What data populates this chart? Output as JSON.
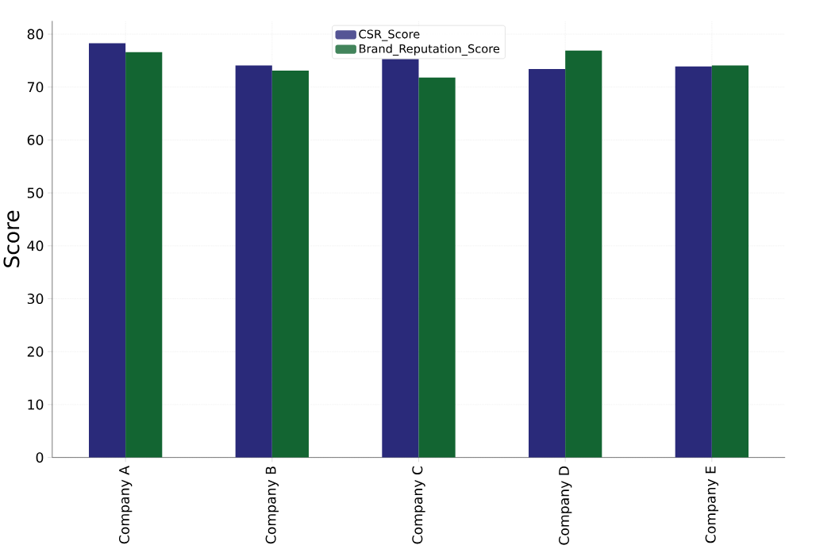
{
  "chart_data": {
    "type": "bar",
    "ylabel": "Score",
    "categories": [
      "Company A",
      "Company B",
      "Company C",
      "Company D",
      "Company E"
    ],
    "series": [
      {
        "name": "CSR_Score",
        "color": "#2a2a7a",
        "values": [
          78.3,
          74.1,
          75.3,
          73.4,
          73.9
        ]
      },
      {
        "name": "Brand_Reputation_Score",
        "color": "#136532",
        "values": [
          76.6,
          73.1,
          71.8,
          76.9,
          74.1
        ]
      }
    ],
    "ylim": [
      0,
      82.5
    ],
    "yticks": [
      0,
      10,
      20,
      30,
      40,
      50,
      60,
      70,
      80
    ],
    "grid": true,
    "legend": "top"
  }
}
